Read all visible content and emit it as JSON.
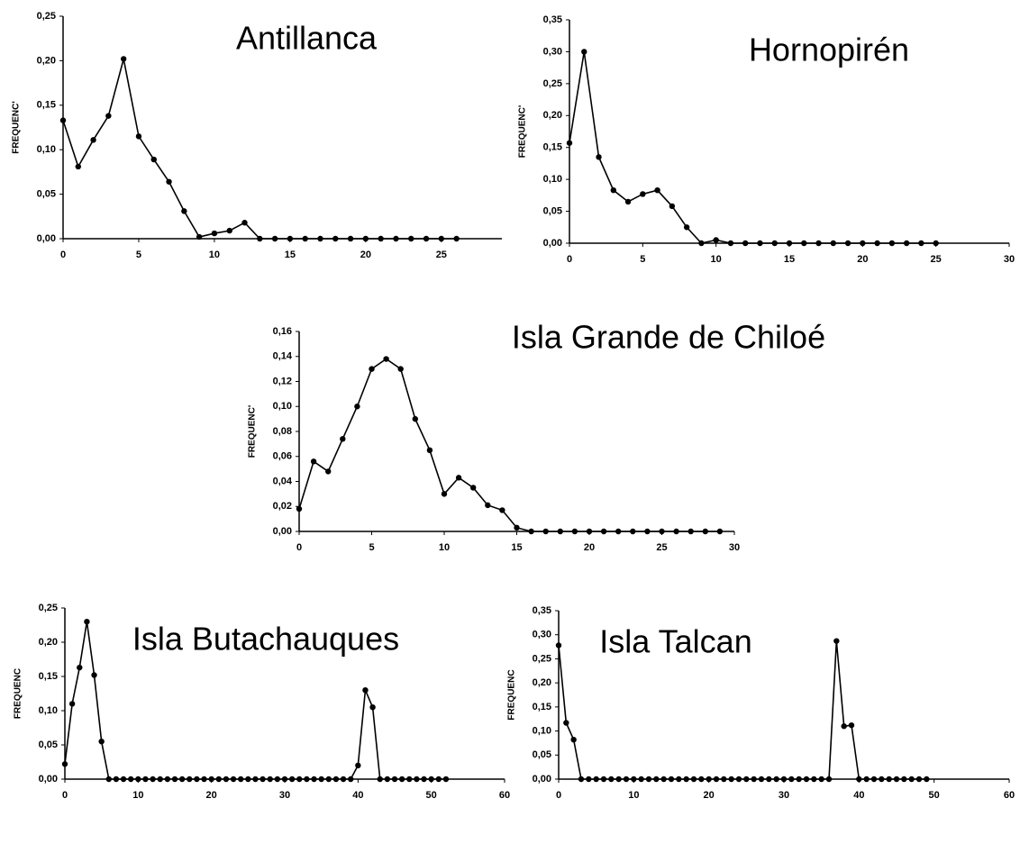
{
  "chart_data": [
    {
      "type": "line",
      "title": "Antillanca",
      "y_label": "FREQUENC'",
      "x": [
        0,
        1,
        2,
        3,
        4,
        5,
        6,
        7,
        8,
        9,
        10,
        11,
        12,
        13,
        14,
        15,
        16,
        17,
        18,
        19,
        20,
        21,
        22,
        23,
        24,
        25,
        26
      ],
      "series": [
        {
          "color": "#000000",
          "values": [
            0.133,
            0.081,
            0.111,
            0.138,
            0.202,
            0.115,
            0.089,
            0.064,
            0.031,
            0.002,
            0.006,
            0.009,
            0.018,
            0,
            0,
            0,
            0,
            0,
            0,
            0,
            0,
            0,
            0,
            0,
            0,
            0,
            0
          ]
        }
      ],
      "xlim": [
        0,
        29
      ],
      "xticks": [
        0,
        5,
        10,
        15,
        20,
        25
      ],
      "ylim": [
        0,
        0.25
      ],
      "yticks": [
        {
          "value": 0,
          "label": "0,00"
        },
        {
          "value": 0.05,
          "label": "0,05"
        },
        {
          "value": 0.1,
          "label": "0,10"
        },
        {
          "value": 0.15,
          "label": "0,15"
        },
        {
          "value": 0.2,
          "label": "0,20"
        },
        {
          "value": 0.25,
          "label": "0,25"
        }
      ]
    },
    {
      "type": "line",
      "title": "Hornopirén",
      "y_label": "FREQUENC'",
      "x": [
        0,
        1,
        2,
        3,
        4,
        5,
        6,
        7,
        8,
        9,
        10,
        11,
        12,
        13,
        14,
        15,
        16,
        17,
        18,
        19,
        20,
        21,
        22,
        23,
        24,
        25
      ],
      "series": [
        {
          "color": "#000000",
          "values": [
            0.157,
            0.3,
            0.135,
            0.083,
            0.065,
            0.077,
            0.083,
            0.058,
            0.025,
            0,
            0.005,
            0,
            0,
            0,
            0,
            0,
            0,
            0,
            0,
            0,
            0,
            0,
            0,
            0,
            0,
            0
          ]
        }
      ],
      "xlim": [
        0,
        30
      ],
      "xticks": [
        0,
        5,
        10,
        15,
        20,
        25,
        30
      ],
      "ylim": [
        0,
        0.35
      ],
      "yticks": [
        {
          "value": 0,
          "label": "0,00"
        },
        {
          "value": 0.05,
          "label": "0,05"
        },
        {
          "value": 0.1,
          "label": "0,10"
        },
        {
          "value": 0.15,
          "label": "0,15"
        },
        {
          "value": 0.2,
          "label": "0,20"
        },
        {
          "value": 0.25,
          "label": "0,25"
        },
        {
          "value": 0.3,
          "label": "0,30"
        },
        {
          "value": 0.35,
          "label": "0,35"
        }
      ]
    },
    {
      "type": "line",
      "title": "Isla Grande de Chiloé",
      "y_label": "FREQUENC'",
      "x": [
        0,
        1,
        2,
        3,
        4,
        5,
        6,
        7,
        8,
        9,
        10,
        11,
        12,
        13,
        14,
        15,
        16,
        17,
        18,
        19,
        20,
        21,
        22,
        23,
        24,
        25,
        26,
        27,
        28,
        29
      ],
      "series": [
        {
          "color": "#000000",
          "values": [
            0.018,
            0.056,
            0.048,
            0.074,
            0.1,
            0.13,
            0.138,
            0.13,
            0.09,
            0.065,
            0.03,
            0.043,
            0.035,
            0.021,
            0.017,
            0.003,
            0,
            0,
            0,
            0,
            0,
            0,
            0,
            0,
            0,
            0,
            0,
            0,
            0,
            0
          ]
        }
      ],
      "xlim": [
        0,
        30
      ],
      "xticks": [
        0,
        5,
        10,
        15,
        20,
        25,
        30
      ],
      "ylim": [
        0,
        0.16
      ],
      "yticks": [
        {
          "value": 0,
          "label": "0,00"
        },
        {
          "value": 0.02,
          "label": "0,02"
        },
        {
          "value": 0.04,
          "label": "0,04"
        },
        {
          "value": 0.06,
          "label": "0,06"
        },
        {
          "value": 0.08,
          "label": "0,08"
        },
        {
          "value": 0.1,
          "label": "0,10"
        },
        {
          "value": 0.12,
          "label": "0,12"
        },
        {
          "value": 0.14,
          "label": "0,14"
        },
        {
          "value": 0.16,
          "label": "0,16"
        }
      ]
    },
    {
      "type": "line",
      "title": "Isla Butachauques",
      "y_label": "FREQUENC",
      "x": [
        0,
        1,
        2,
        3,
        4,
        5,
        6,
        7,
        8,
        9,
        10,
        11,
        12,
        13,
        14,
        15,
        16,
        17,
        18,
        19,
        20,
        21,
        22,
        23,
        24,
        25,
        26,
        27,
        28,
        29,
        30,
        31,
        32,
        33,
        34,
        35,
        36,
        37,
        38,
        39,
        40,
        41,
        42,
        43,
        44,
        45,
        46,
        47,
        48,
        49,
        50,
        51,
        52
      ],
      "series": [
        {
          "color": "#000000",
          "values": [
            0.022,
            0.11,
            0.163,
            0.23,
            0.152,
            0.055,
            0,
            0,
            0,
            0,
            0,
            0,
            0,
            0,
            0,
            0,
            0,
            0,
            0,
            0,
            0,
            0,
            0,
            0,
            0,
            0,
            0,
            0,
            0,
            0,
            0,
            0,
            0,
            0,
            0,
            0,
            0,
            0,
            0,
            0,
            0.02,
            0.13,
            0.105,
            0,
            0,
            0,
            0,
            0,
            0,
            0,
            0,
            0,
            0
          ]
        }
      ],
      "xlim": [
        0,
        60
      ],
      "xticks": [
        0,
        10,
        20,
        30,
        40,
        50,
        60
      ],
      "ylim": [
        0,
        0.25
      ],
      "yticks": [
        {
          "value": 0,
          "label": "0,00"
        },
        {
          "value": 0.05,
          "label": "0,05"
        },
        {
          "value": 0.1,
          "label": "0,10"
        },
        {
          "value": 0.15,
          "label": "0,15"
        },
        {
          "value": 0.2,
          "label": "0,20"
        },
        {
          "value": 0.25,
          "label": "0,25"
        }
      ]
    },
    {
      "type": "line",
      "title": "Isla Talcan",
      "y_label": "FREQUENC",
      "x": [
        0,
        1,
        2,
        3,
        4,
        5,
        6,
        7,
        8,
        9,
        10,
        11,
        12,
        13,
        14,
        15,
        16,
        17,
        18,
        19,
        20,
        21,
        22,
        23,
        24,
        25,
        26,
        27,
        28,
        29,
        30,
        31,
        32,
        33,
        34,
        35,
        36,
        37,
        38,
        39,
        40,
        41,
        42,
        43,
        44,
        45,
        46,
        47,
        48,
        49
      ],
      "series": [
        {
          "color": "#000000",
          "values": [
            0.278,
            0.117,
            0.082,
            0,
            0,
            0,
            0,
            0,
            0,
            0,
            0,
            0,
            0,
            0,
            0,
            0,
            0,
            0,
            0,
            0,
            0,
            0,
            0,
            0,
            0,
            0,
            0,
            0,
            0,
            0,
            0,
            0,
            0,
            0,
            0,
            0,
            0,
            0.287,
            0.11,
            0.112,
            0,
            0,
            0,
            0,
            0,
            0,
            0,
            0,
            0,
            0
          ]
        }
      ],
      "xlim": [
        0,
        60
      ],
      "xticks": [
        0,
        10,
        20,
        30,
        40,
        50,
        60
      ],
      "ylim": [
        0,
        0.35
      ],
      "yticks": [
        {
          "value": 0,
          "label": "0,00"
        },
        {
          "value": 0.05,
          "label": "0,05"
        },
        {
          "value": 0.1,
          "label": "0,10"
        },
        {
          "value": 0.15,
          "label": "0,15"
        },
        {
          "value": 0.2,
          "label": "0,20"
        },
        {
          "value": 0.25,
          "label": "0,25"
        },
        {
          "value": 0.3,
          "label": "0,30"
        },
        {
          "value": 0.35,
          "label": "0,35"
        }
      ]
    }
  ]
}
